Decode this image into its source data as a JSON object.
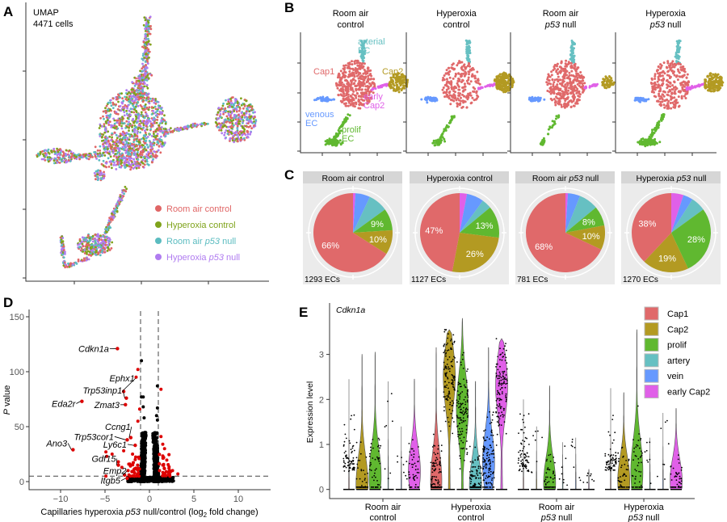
{
  "panel_letters": [
    "A",
    "B",
    "C",
    "D",
    "E"
  ],
  "colors": {
    "room_air_control": "#e06666",
    "hyperoxia_control": "#7fa31b",
    "room_air_p53_null": "#5bbcc0",
    "hyperoxia_p53_null": "#b07cf0",
    "Cap1": "#e0696a",
    "Cap2": "#b39a22",
    "prolif": "#60b830",
    "artery": "#66c0c2",
    "vein": "#6699ff",
    "early_Cap2": "#e060e8",
    "sig": "#dd0000",
    "nonsig": "#000000"
  },
  "chart_data": [
    {
      "id": "A",
      "type": "scatter",
      "title": "UMAP",
      "subtitle": "4471 cells",
      "legend": [
        "Room air control",
        "Hyperoxia  control",
        "Room air p53 null",
        "Hyperoxia  p53 null"
      ],
      "legend_placement": "bottom-right",
      "grid": false
    },
    {
      "id": "B",
      "type": "scatter",
      "facets": [
        {
          "title": [
            "Room air",
            "control"
          ]
        },
        {
          "title": [
            "Hyperoxia",
            "control"
          ]
        },
        {
          "title": [
            "Room air",
            "p53 null"
          ]
        },
        {
          "title": [
            "Hyperoxia",
            "p53 null"
          ]
        }
      ],
      "cluster_labels": [
        {
          "text": [
            "arterial",
            "EC"
          ],
          "type": "artery"
        },
        {
          "text": [
            "Cap1"
          ],
          "type": "Cap1"
        },
        {
          "text": [
            "Cap2"
          ],
          "type": "Cap2"
        },
        {
          "text": [
            "early",
            "Cap2"
          ],
          "type": "early_Cap2"
        },
        {
          "text": [
            "venous",
            "EC"
          ],
          "type": "vein"
        },
        {
          "text": [
            "prolif",
            "EC"
          ],
          "type": "prolif"
        }
      ],
      "grid": false
    },
    {
      "id": "C",
      "type": "pie",
      "slice_order": [
        "early_Cap2",
        "vein",
        "artery",
        "prolif",
        "Cap2",
        "Cap1"
      ],
      "pies": [
        {
          "title": "Room air control",
          "count_label": "1293 ECs",
          "values": [
            1,
            6,
            8,
            9,
            10,
            66
          ],
          "labels": [
            "",
            "",
            "",
            "9%",
            "10%",
            "66%"
          ]
        },
        {
          "title": "Hyperoxia control",
          "count_label": "1127 ECs",
          "values": [
            3,
            7,
            4,
            13,
            26,
            47
          ],
          "labels": [
            "",
            "",
            "",
            "13%",
            "26%",
            "47%"
          ]
        },
        {
          "title": "Room air p53 null",
          "count_label": "781 ECs",
          "values": [
            1,
            5,
            8,
            8,
            10,
            68
          ],
          "labels": [
            "",
            "",
            "",
            "8%",
            "10%",
            "68%"
          ]
        },
        {
          "title": "Hyperoxia p53 null",
          "count_label": "1270 ECs",
          "values": [
            5,
            4,
            6,
            28,
            19,
            38
          ],
          "labels": [
            "",
            "",
            "",
            "28%",
            "19%",
            "38%"
          ]
        }
      ]
    },
    {
      "id": "D",
      "type": "scatter",
      "xlabel": "Capillaries hyperoxia p53 null/control (log2 fold change)",
      "ylabel": "P value",
      "xlim": [
        -13,
        13.5
      ],
      "ylim": [
        -5,
        155
      ],
      "xticks": [
        -10,
        -5,
        0,
        5,
        10
      ],
      "yticks": [
        0,
        50,
        100,
        150
      ],
      "thresholds": {
        "x": [
          -1,
          1
        ],
        "y": 5
      },
      "labeled_points": [
        {
          "gene": "Cdkn1a",
          "x": -3.6,
          "y": 121
        },
        {
          "gene": "Ephx1",
          "x": -2.9,
          "y": 82
        },
        {
          "gene": "Trp53inp1",
          "x": -2.6,
          "y": 76
        },
        {
          "gene": "Eda2r",
          "x": -7.6,
          "y": 73
        },
        {
          "gene": "Zmat3",
          "x": -2.7,
          "y": 70
        },
        {
          "gene": "Ccng1",
          "x": -2.1,
          "y": 40
        },
        {
          "gene": "Trp53cor1",
          "x": -2.5,
          "y": 38
        },
        {
          "gene": "Ly6c1",
          "x": -1.6,
          "y": 33
        },
        {
          "gene": "Ano3",
          "x": -8.6,
          "y": 29
        },
        {
          "gene": "Gdf15",
          "x": -3.5,
          "y": 15
        },
        {
          "gene": "Emp2",
          "x": -2.8,
          "y": 6
        },
        {
          "gene": "Itgb5",
          "x": -2.5,
          "y": 3
        }
      ],
      "other_significant": [
        [
          -1.3,
          102
        ],
        [
          -1.5,
          95
        ],
        [
          1.3,
          84
        ],
        [
          -1.1,
          66
        ],
        [
          -1.3,
          55
        ],
        [
          -4.9,
          27
        ],
        [
          -4.8,
          23
        ],
        [
          -4.2,
          25
        ],
        [
          -3.5,
          18
        ],
        [
          -3.1,
          13
        ],
        [
          -2.4,
          10
        ],
        [
          -2.9,
          28
        ],
        [
          -1.6,
          20
        ],
        [
          1.3,
          41
        ],
        [
          1.5,
          34
        ],
        [
          1.7,
          30
        ],
        [
          1.6,
          22
        ],
        [
          2.2,
          12
        ],
        [
          2.6,
          10
        ],
        [
          3.2,
          7
        ],
        [
          1.5,
          15
        ],
        [
          1.9,
          9
        ],
        [
          -4.9,
          5
        ],
        [
          -1.9,
          25
        ],
        [
          -2.2,
          16
        ]
      ],
      "other_nonsig": [
        [
          -0.9,
          110
        ],
        [
          0.9,
          87
        ],
        [
          -0.7,
          77
        ],
        [
          -0.9,
          77
        ],
        [
          -0.7,
          68
        ],
        [
          0.9,
          67
        ],
        [
          0.8,
          60
        ],
        [
          0.9,
          56
        ],
        [
          -0.6,
          58
        ]
      ],
      "grid": false
    },
    {
      "id": "E",
      "type": "violin",
      "title": "Cdkn1a",
      "ylabel": "Expression level",
      "ylim": [
        0,
        3.9
      ],
      "yticks": [
        0,
        1,
        2,
        3
      ],
      "categories": [
        [
          "Room air",
          "control"
        ],
        [
          "Hyperoxia",
          "control"
        ],
        [
          "Room air",
          "p53 null"
        ],
        [
          "Hyperoxia",
          "p53 null"
        ]
      ],
      "series_names": [
        "Cap1",
        "Cap2",
        "prolif",
        "artery",
        "vein",
        "early Cap2"
      ],
      "series_keys": [
        "Cap1",
        "Cap2",
        "prolif",
        "artery",
        "vein",
        "early_Cap2"
      ],
      "legend_placement": "top-right",
      "max_values": [
        [
          2.45,
          3.0,
          3.05,
          2.4,
          1.4,
          2.45
        ],
        [
          3.15,
          3.55,
          3.8,
          2.4,
          3.15,
          3.35
        ],
        [
          2.0,
          1.4,
          2.3,
          1.05,
          1.15,
          0.45
        ],
        [
          2.25,
          2.15,
          3.55,
          1.15,
          1.7,
          1.8
        ]
      ],
      "modes": [
        [
          0,
          0.1,
          0.3,
          0,
          0,
          0.4
        ],
        [
          0.2,
          2.5,
          1.8,
          0.1,
          0.6,
          2.3
        ],
        [
          0,
          0,
          0.15,
          0,
          0,
          0
        ],
        [
          0,
          0.2,
          0.4,
          0,
          0,
          0.2
        ]
      ]
    }
  ]
}
